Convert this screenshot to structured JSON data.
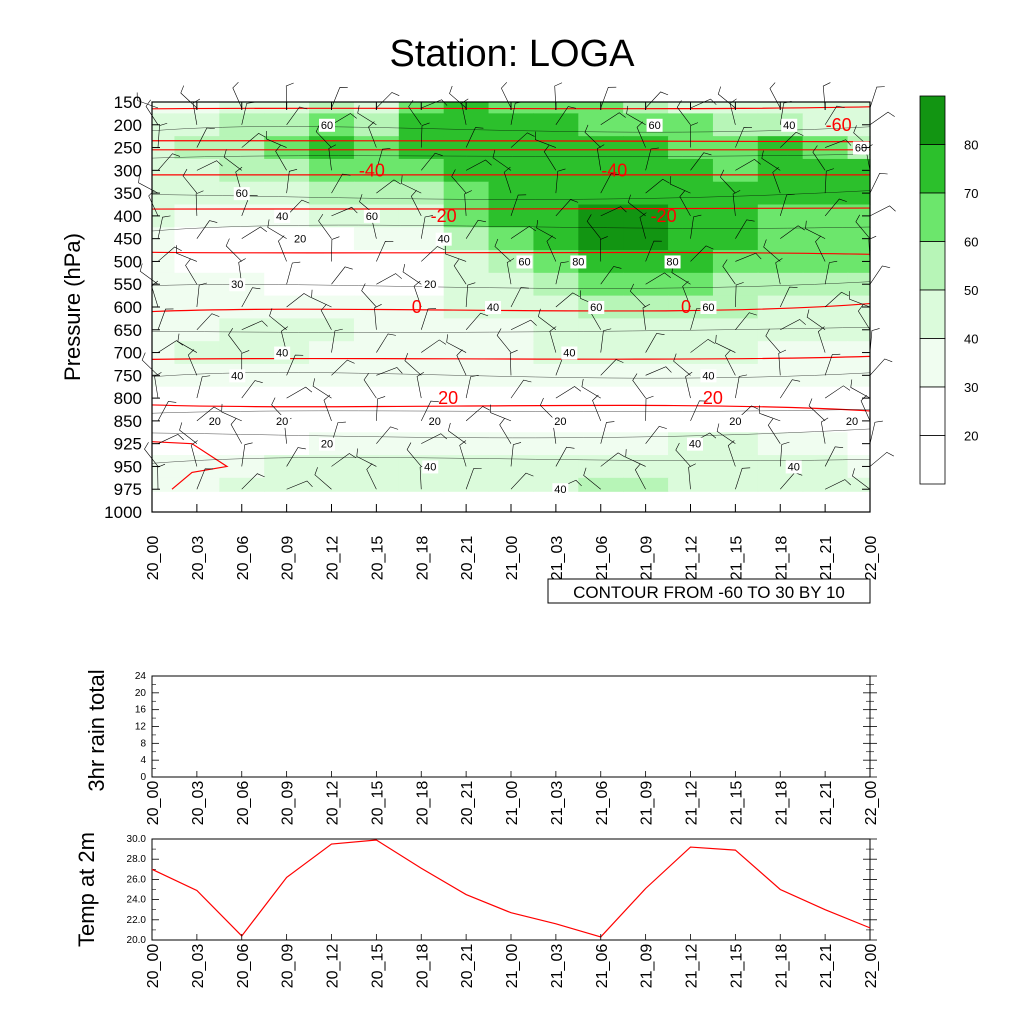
{
  "title": "Station: LOGA",
  "colors": {
    "contour_fill": [
      "#ffffff",
      "#ffffff",
      "#ffffff",
      "#f0fdf0",
      "#dbfbdb",
      "#b7f5b7",
      "#6ce66c",
      "#2cc02c",
      "#129512"
    ],
    "temp_contour": "#ff0000",
    "rh_contour": "#000000",
    "temp_line": "#ff0000"
  },
  "cross_section": {
    "ylabel": "Pressure (hPa)",
    "x_ticks": [
      "20_00",
      "20_03",
      "20_06",
      "20_09",
      "20_12",
      "20_15",
      "20_18",
      "20_21",
      "21_00",
      "21_03",
      "21_06",
      "21_09",
      "21_12",
      "21_15",
      "21_18",
      "21_21",
      "22_00"
    ],
    "y_ticks": [
      "150",
      "200",
      "250",
      "300",
      "350",
      "400",
      "450",
      "500",
      "550",
      "600",
      "650",
      "700",
      "750",
      "800",
      "850",
      "925",
      "950",
      "975",
      "1000"
    ],
    "info_label": "CONTOUR FROM -60 TO 30 BY 10",
    "colorbar_labels": [
      "20",
      "30",
      "40",
      "50",
      "60",
      "70",
      "80"
    ],
    "temp_contour_labels": [
      {
        "text": "-60",
        "level": 200,
        "time": 15.3
      },
      {
        "text": "-40",
        "level": 300,
        "time": 4.9
      },
      {
        "text": "-40",
        "level": 300,
        "time": 10.3
      },
      {
        "text": "-20",
        "level": 400,
        "time": 6.5
      },
      {
        "text": "-20",
        "level": 400,
        "time": 11.4
      },
      {
        "text": "0",
        "level": 600,
        "time": 5.9
      },
      {
        "text": "0",
        "level": 600,
        "time": 11.9
      },
      {
        "text": "20",
        "level": 800,
        "time": 6.6
      },
      {
        "text": "20",
        "level": 800,
        "time": 12.5
      }
    ],
    "rh_contour_labels": [
      {
        "text": "60",
        "level": 200,
        "time": 3.9
      },
      {
        "text": "60",
        "level": 200,
        "time": 11.2
      },
      {
        "text": "40",
        "level": 200,
        "time": 14.2
      },
      {
        "text": "60",
        "level": 250,
        "time": 15.8
      },
      {
        "text": "60",
        "level": 350,
        "time": 2.0
      },
      {
        "text": "60",
        "level": 400,
        "time": 4.9
      },
      {
        "text": "40",
        "level": 400,
        "time": 2.9
      },
      {
        "text": "20",
        "level": 450,
        "time": 3.3
      },
      {
        "text": "40",
        "level": 450,
        "time": 6.5
      },
      {
        "text": "60",
        "level": 500,
        "time": 8.3
      },
      {
        "text": "80",
        "level": 500,
        "time": 9.5
      },
      {
        "text": "80",
        "level": 500,
        "time": 11.6
      },
      {
        "text": "30",
        "level": 550,
        "time": 1.9
      },
      {
        "text": "20",
        "level": 550,
        "time": 6.2
      },
      {
        "text": "40",
        "level": 600,
        "time": 7.6
      },
      {
        "text": "60",
        "level": 600,
        "time": 9.9
      },
      {
        "text": "60",
        "level": 600,
        "time": 12.4
      },
      {
        "text": "40",
        "level": 700,
        "time": 2.9
      },
      {
        "text": "40",
        "level": 700,
        "time": 9.3
      },
      {
        "text": "40",
        "level": 750,
        "time": 12.4
      },
      {
        "text": "40",
        "level": 750,
        "time": 1.9
      },
      {
        "text": "20",
        "level": 850,
        "time": 1.4
      },
      {
        "text": "20",
        "level": 850,
        "time": 2.9
      },
      {
        "text": "20",
        "level": 850,
        "time": 6.3
      },
      {
        "text": "20",
        "level": 850,
        "time": 9.1
      },
      {
        "text": "20",
        "level": 850,
        "time": 13.0
      },
      {
        "text": "20",
        "level": 850,
        "time": 15.6
      },
      {
        "text": "20",
        "level": 925,
        "time": 3.9
      },
      {
        "text": "40",
        "level": 925,
        "time": 12.1
      },
      {
        "text": "40",
        "level": 950,
        "time": 6.2
      },
      {
        "text": "40",
        "level": 950,
        "time": 14.3
      },
      {
        "text": "40",
        "level": 975,
        "time": 9.1
      }
    ]
  },
  "rain_panel": {
    "ylabel": "3hr rain total",
    "y_ticks": [
      "0",
      "4",
      "8",
      "12",
      "16",
      "20",
      "24"
    ],
    "x_ticks": [
      "20_00",
      "20_03",
      "20_06",
      "20_09",
      "20_12",
      "20_15",
      "20_18",
      "20_21",
      "21_00",
      "21_03",
      "21_06",
      "21_09",
      "21_12",
      "21_15",
      "21_18",
      "21_21",
      "22_00"
    ]
  },
  "temp_panel": {
    "ylabel": "Temp at 2m",
    "y_ticks": [
      "20.0",
      "22.0",
      "24.0",
      "26.0",
      "28.0",
      "30.0"
    ],
    "x_ticks": [
      "20_00",
      "20_03",
      "20_06",
      "20_09",
      "20_12",
      "20_15",
      "20_18",
      "20_21",
      "21_00",
      "21_03",
      "21_06",
      "21_09",
      "21_12",
      "21_15",
      "21_18",
      "21_21",
      "22_00"
    ]
  },
  "chart_data": [
    {
      "type": "heatmap",
      "title": "Station: LOGA",
      "ylabel": "Pressure (hPa)",
      "y_levels": [
        150,
        200,
        250,
        300,
        350,
        400,
        450,
        500,
        550,
        600,
        650,
        700,
        750,
        800,
        850,
        925,
        950,
        975
      ],
      "x": [
        "20_00",
        "20_03",
        "20_06",
        "20_09",
        "20_12",
        "20_15",
        "20_18",
        "20_21",
        "21_00",
        "21_03",
        "21_06",
        "21_09",
        "21_12",
        "21_15",
        "21_18",
        "21_21",
        "22_00"
      ],
      "levels": [
        20,
        30,
        40,
        50,
        60,
        70,
        80
      ],
      "values": [
        [
          30,
          35,
          45,
          40,
          50,
          40,
          60,
          70,
          65,
          60,
          60,
          55,
          45,
          40,
          40,
          40,
          40
        ],
        [
          40,
          45,
          55,
          55,
          60,
          55,
          70,
          75,
          72,
          70,
          68,
          65,
          60,
          55,
          50,
          45,
          45
        ],
        [
          45,
          50,
          55,
          60,
          72,
          68,
          70,
          75,
          74,
          70,
          72,
          72,
          68,
          62,
          70,
          62,
          55
        ],
        [
          45,
          45,
          55,
          55,
          62,
          68,
          65,
          70,
          72,
          72,
          75,
          74,
          70,
          65,
          70,
          72,
          70
        ],
        [
          45,
          40,
          45,
          45,
          50,
          55,
          50,
          65,
          70,
          72,
          75,
          75,
          72,
          70,
          70,
          70,
          72
        ],
        [
          40,
          35,
          35,
          35,
          40,
          45,
          40,
          60,
          70,
          75,
          82,
          82,
          78,
          70,
          65,
          65,
          65
        ],
        [
          30,
          25,
          25,
          25,
          25,
          30,
          30,
          55,
          65,
          75,
          80,
          80,
          75,
          70,
          65,
          62,
          62
        ],
        [
          30,
          25,
          20,
          15,
          15,
          20,
          20,
          45,
          55,
          65,
          70,
          72,
          70,
          68,
          65,
          60,
          60
        ],
        [
          35,
          30,
          30,
          25,
          20,
          20,
          20,
          40,
          45,
          55,
          60,
          60,
          60,
          58,
          55,
          50,
          50
        ],
        [
          35,
          35,
          35,
          30,
          30,
          35,
          35,
          40,
          40,
          45,
          50,
          50,
          50,
          50,
          45,
          45,
          45
        ],
        [
          35,
          38,
          42,
          45,
          40,
          35,
          35,
          35,
          38,
          42,
          45,
          45,
          45,
          42,
          40,
          40,
          40
        ],
        [
          35,
          42,
          40,
          40,
          38,
          35,
          35,
          35,
          38,
          40,
          42,
          42,
          42,
          40,
          38,
          38,
          35
        ],
        [
          35,
          35,
          35,
          32,
          30,
          30,
          30,
          30,
          30,
          32,
          35,
          35,
          35,
          35,
          35,
          32,
          32
        ],
        [
          25,
          25,
          25,
          25,
          25,
          25,
          25,
          25,
          25,
          25,
          25,
          25,
          25,
          25,
          25,
          25,
          25
        ],
        [
          20,
          20,
          20,
          20,
          18,
          15,
          15,
          15,
          15,
          18,
          18,
          20,
          20,
          20,
          20,
          20,
          20
        ],
        [
          20,
          20,
          22,
          25,
          30,
          35,
          38,
          35,
          30,
          30,
          30,
          35,
          40,
          40,
          35,
          30,
          28
        ],
        [
          30,
          30,
          35,
          40,
          45,
          45,
          45,
          42,
          40,
          40,
          42,
          45,
          45,
          45,
          45,
          40,
          38
        ],
        [
          38,
          38,
          40,
          42,
          45,
          48,
          45,
          45,
          45,
          48,
          52,
          52,
          48,
          45,
          45,
          42,
          40
        ]
      ],
      "temperature_contours": {
        "start": -60,
        "end": 30,
        "step": 10
      }
    },
    {
      "type": "line",
      "ylabel": "3hr rain total",
      "x": [
        "20_00",
        "20_03",
        "20_06",
        "20_09",
        "20_12",
        "20_15",
        "20_18",
        "20_21",
        "21_00",
        "21_03",
        "21_06",
        "21_09",
        "21_12",
        "21_15",
        "21_18",
        "21_21",
        "22_00"
      ],
      "values": [
        0,
        0,
        0,
        0,
        0,
        0,
        0,
        0,
        0,
        0,
        0,
        0,
        0,
        0,
        0,
        0,
        0
      ],
      "ylim": [
        0,
        24
      ]
    },
    {
      "type": "line",
      "ylabel": "Temp at 2m",
      "x": [
        "20_00",
        "20_03",
        "20_06",
        "20_09",
        "20_12",
        "20_15",
        "20_18",
        "20_21",
        "21_00",
        "21_03",
        "21_06",
        "21_09",
        "21_12",
        "21_15",
        "21_18",
        "21_21",
        "22_00"
      ],
      "values": [
        27.0,
        24.9,
        20.4,
        26.2,
        29.5,
        29.9,
        27.1,
        24.5,
        22.7,
        21.6,
        20.3,
        25.1,
        29.2,
        28.9,
        25.0,
        23.0,
        21.2
      ],
      "ylim": [
        20,
        30
      ]
    }
  ]
}
